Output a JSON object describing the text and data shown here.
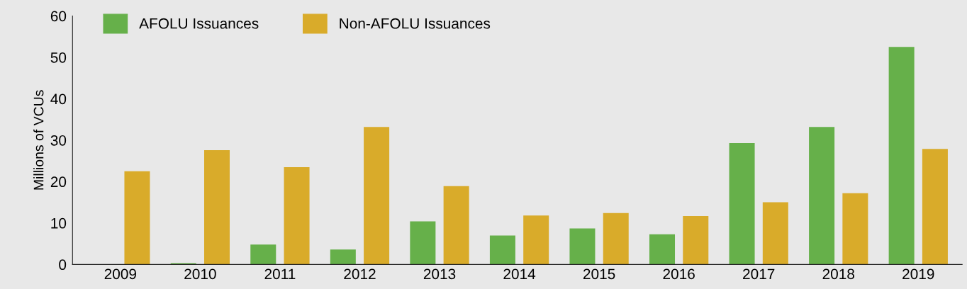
{
  "chart_data": {
    "type": "bar",
    "ylabel": "Millions of VCUs",
    "categories": [
      "2009",
      "2010",
      "2011",
      "2012",
      "2013",
      "2014",
      "2015",
      "2016",
      "2017",
      "2018",
      "2019"
    ],
    "series": [
      {
        "name": "AFOLU Issuances",
        "color": "#66b04a",
        "values": [
          0,
          0.3,
          4.8,
          3.6,
          10.4,
          7.0,
          8.7,
          7.3,
          29.3,
          33.2,
          52.5
        ]
      },
      {
        "name": "Non-AFOLU Issuances",
        "color": "#d9ab2a",
        "values": [
          22.5,
          27.6,
          23.5,
          33.2,
          18.9,
          11.8,
          12.4,
          11.7,
          15.0,
          17.2,
          27.9
        ]
      }
    ],
    "ylim": [
      0,
      60
    ],
    "yticks": [
      0,
      10,
      20,
      30,
      40,
      50,
      60
    ],
    "grid": false,
    "legend": "top left"
  }
}
